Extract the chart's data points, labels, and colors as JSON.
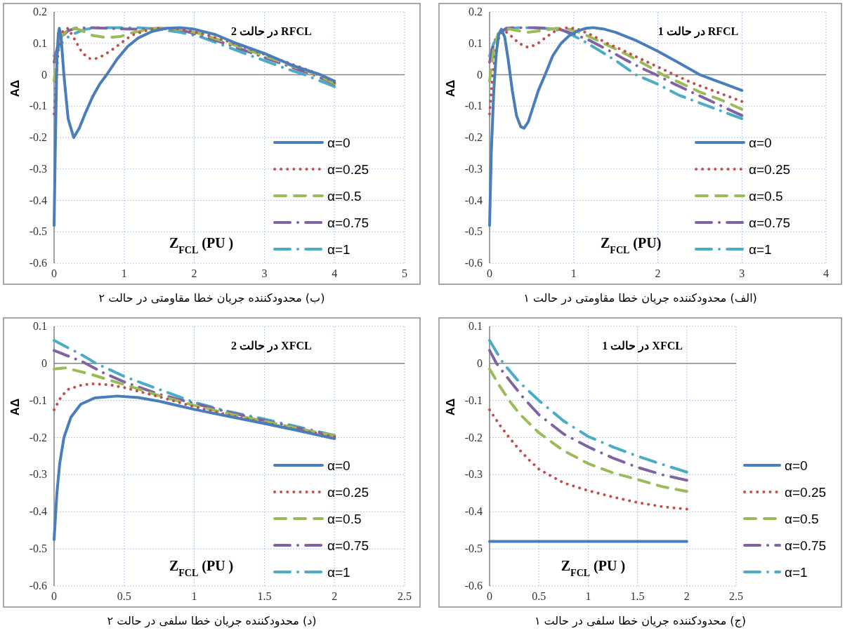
{
  "chart_data": [
    {
      "type": "line",
      "title": "RFCL در حالت 1",
      "xlabel": "Z$_{FCL}$ (PU)",
      "ylabel": "AΔ",
      "annotations": [
        "(الف) محدودکننده جریان خطا مقاومتی در حالت ۱"
      ],
      "xlim": [
        0,
        4
      ],
      "ylim": [
        -0.6,
        0.2
      ],
      "xticks": [
        0,
        1,
        2,
        3,
        4
      ],
      "yticks": [
        -0.6,
        -0.5,
        -0.4,
        -0.3,
        -0.2,
        -0.1,
        0,
        0.1,
        0.2
      ],
      "grid": true,
      "legend": "bottom right",
      "series": [
        {
          "name": "α=0",
          "color": "#4a7ebb",
          "line_style": "solid",
          "x": [
            0,
            0.02,
            0.05,
            0.08,
            0.11,
            0.14,
            0.18,
            0.22,
            0.27,
            0.32,
            0.37,
            0.41,
            0.46,
            0.52,
            0.58,
            0.66,
            0.75,
            0.85,
            0.95,
            1.05,
            1.15,
            1.23,
            1.35,
            1.5,
            1.75,
            2,
            2.25,
            2.5,
            2.75,
            3
          ],
          "values": [
            -0.48,
            -0.25,
            -0.05,
            0.07,
            0.13,
            0.145,
            0.12,
            0.05,
            -0.05,
            -0.13,
            -0.165,
            -0.17,
            -0.15,
            -0.1,
            -0.05,
            0.0,
            0.06,
            0.1,
            0.125,
            0.14,
            0.148,
            0.15,
            0.146,
            0.135,
            0.108,
            0.075,
            0.038,
            0.0,
            -0.025,
            -0.05
          ]
        },
        {
          "name": "α=0.25",
          "color": "#c0504d",
          "line_style": "dotted",
          "x": [
            0,
            0.03,
            0.07,
            0.12,
            0.18,
            0.25,
            0.35,
            0.45,
            0.55,
            0.65,
            0.75,
            0.85,
            0.95,
            1.05,
            1.2,
            1.4,
            1.6,
            1.8,
            2,
            2.2,
            2.4,
            2.6,
            2.8,
            3
          ],
          "values": [
            -0.125,
            -0.02,
            0.07,
            0.13,
            0.14,
            0.125,
            0.1,
            0.088,
            0.095,
            0.115,
            0.135,
            0.147,
            0.15,
            0.145,
            0.128,
            0.1,
            0.076,
            0.05,
            0.025,
            0.0,
            -0.025,
            -0.045,
            -0.065,
            -0.085
          ]
        },
        {
          "name": "α=0.5",
          "color": "#9bbb59",
          "line_style": "dashed",
          "x": [
            0,
            0.05,
            0.1,
            0.2,
            0.3,
            0.45,
            0.6,
            0.8,
            0.95,
            1.1,
            1.3,
            1.5,
            1.7,
            1.9,
            2.06,
            2.3,
            2.5,
            2.75,
            3
          ],
          "values": [
            -0.02,
            0.08,
            0.13,
            0.148,
            0.142,
            0.135,
            0.14,
            0.148,
            0.145,
            0.132,
            0.107,
            0.082,
            0.055,
            0.025,
            0.0,
            -0.03,
            -0.055,
            -0.08,
            -0.11
          ]
        },
        {
          "name": "α=0.75",
          "color": "#8064a2",
          "line_style": "dashdot",
          "x": [
            0,
            0.05,
            0.1,
            0.2,
            0.3,
            0.5,
            0.7,
            0.85,
            1.0,
            1.2,
            1.4,
            1.6,
            1.8,
            1.98,
            2.2,
            2.4,
            2.6,
            2.8,
            3
          ],
          "values": [
            0.04,
            0.1,
            0.13,
            0.148,
            0.15,
            0.15,
            0.148,
            0.143,
            0.13,
            0.108,
            0.08,
            0.05,
            0.022,
            0.0,
            -0.03,
            -0.055,
            -0.08,
            -0.105,
            -0.13
          ]
        },
        {
          "name": "α=1",
          "color": "#4bacc6",
          "line_style": "dashdot",
          "x": [
            0,
            0.05,
            0.1,
            0.15,
            0.25,
            0.35,
            0.5,
            0.7,
            0.9,
            1.1,
            1.3,
            1.5,
            1.74,
            2.0,
            2.25,
            2.5,
            2.75,
            3
          ],
          "values": [
            0.06,
            0.1,
            0.125,
            0.14,
            0.147,
            0.15,
            0.15,
            0.147,
            0.138,
            0.11,
            0.078,
            0.045,
            0.0,
            -0.03,
            -0.065,
            -0.09,
            -0.115,
            -0.14
          ]
        }
      ]
    },
    {
      "type": "line",
      "title": "RFCL در حالت 2",
      "xlabel": "Z$_{FCL}$ (PU )",
      "ylabel": "AΔ",
      "annotations": [
        "(ب) محدودکننده جریان خطا مقاومتی در حالت ۲"
      ],
      "xlim": [
        0,
        5
      ],
      "ylim": [
        -0.6,
        0.2
      ],
      "xticks": [
        0,
        1,
        2,
        3,
        4,
        5
      ],
      "yticks": [
        -0.6,
        -0.5,
        -0.4,
        -0.3,
        -0.2,
        -0.1,
        0,
        0.1,
        0.2
      ],
      "grid": true,
      "legend": "bottom right",
      "series": [
        {
          "name": "α=0",
          "color": "#4a7ebb",
          "line_style": "solid",
          "x": [
            0,
            0.02,
            0.04,
            0.06,
            0.075,
            0.1,
            0.14,
            0.2,
            0.28,
            0.36,
            0.45,
            0.55,
            0.65,
            0.75,
            0.9,
            1.05,
            1.2,
            1.4,
            1.6,
            1.8,
            2.0,
            2.3,
            2.6,
            3.0,
            3.4,
            3.8,
            4.0
          ],
          "values": [
            -0.48,
            -0.2,
            0.05,
            0.13,
            0.148,
            0.12,
            0.0,
            -0.14,
            -0.2,
            -0.17,
            -0.12,
            -0.07,
            -0.03,
            0.0,
            0.05,
            0.09,
            0.117,
            0.138,
            0.148,
            0.15,
            0.145,
            0.128,
            0.1,
            0.068,
            0.03,
            0.0,
            -0.02
          ]
        },
        {
          "name": "α=0.25",
          "color": "#c0504d",
          "line_style": "dotted",
          "x": [
            0,
            0.03,
            0.06,
            0.1,
            0.15,
            0.2,
            0.3,
            0.4,
            0.5,
            0.57,
            0.65,
            0.8,
            0.95,
            1.1,
            1.3,
            1.5,
            1.8,
            2.1,
            2.5,
            3.0,
            3.5,
            3.8,
            4.0
          ],
          "values": [
            -0.125,
            -0.02,
            0.08,
            0.13,
            0.145,
            0.148,
            0.11,
            0.07,
            0.052,
            0.05,
            0.055,
            0.075,
            0.1,
            0.125,
            0.14,
            0.148,
            0.145,
            0.132,
            0.105,
            0.065,
            0.025,
            0.0,
            -0.025
          ]
        },
        {
          "name": "α=0.5",
          "color": "#9bbb59",
          "line_style": "dashed",
          "x": [
            0,
            0.05,
            0.1,
            0.2,
            0.3,
            0.4,
            0.55,
            0.75,
            0.95,
            1.1,
            1.25,
            1.5,
            1.8,
            2.1,
            2.5,
            3.0,
            3.5,
            3.75,
            4.0
          ],
          "values": [
            -0.02,
            0.08,
            0.12,
            0.145,
            0.148,
            0.14,
            0.125,
            0.118,
            0.122,
            0.133,
            0.14,
            0.148,
            0.145,
            0.13,
            0.1,
            0.06,
            0.02,
            0.0,
            -0.028
          ]
        },
        {
          "name": "α=0.75",
          "color": "#8064a2",
          "line_style": "dashdot",
          "x": [
            0,
            0.05,
            0.1,
            0.2,
            0.3,
            0.5,
            0.75,
            1.0,
            1.25,
            1.5,
            1.8,
            2.1,
            2.5,
            3.0,
            3.5,
            3.7,
            4.0
          ],
          "values": [
            0.04,
            0.09,
            0.12,
            0.14,
            0.148,
            0.15,
            0.148,
            0.146,
            0.145,
            0.148,
            0.143,
            0.125,
            0.095,
            0.055,
            0.015,
            0.0,
            -0.03
          ]
        },
        {
          "name": "α=1",
          "color": "#4bacc6",
          "line_style": "dashdot",
          "x": [
            0,
            0.05,
            0.1,
            0.2,
            0.3,
            0.45,
            0.6,
            0.9,
            1.2,
            1.5,
            1.8,
            2.1,
            2.4,
            2.75,
            3.0,
            3.3,
            3.6,
            4.0
          ],
          "values": [
            0.06,
            0.08,
            0.1,
            0.12,
            0.132,
            0.145,
            0.15,
            0.15,
            0.15,
            0.145,
            0.135,
            0.12,
            0.095,
            0.065,
            0.045,
            0.02,
            -0.002,
            -0.038
          ]
        }
      ]
    },
    {
      "type": "line",
      "title": "XFCL در حالت 1",
      "xlabel": "Z$_{FCL}$ (PU )",
      "ylabel": "AΔ",
      "annotations": [
        "(ج) محدودکننده جریان خطا سلفی در حالت ۱"
      ],
      "xlim": [
        0,
        2.5
      ],
      "ylim": [
        -0.6,
        0.1
      ],
      "xticks": [
        0,
        0.5,
        1,
        1.5,
        2,
        2.5
      ],
      "yticks": [
        -0.6,
        -0.5,
        -0.4,
        -0.3,
        -0.2,
        -0.1,
        0,
        0.1
      ],
      "grid": true,
      "legend": "right",
      "series": [
        {
          "name": "α=0",
          "color": "#4a7ebb",
          "line_style": "solid",
          "x": [
            0,
            2
          ],
          "values": [
            -0.48,
            -0.48
          ]
        },
        {
          "name": "α=0.25",
          "color": "#c0504d",
          "line_style": "dotted",
          "x": [
            0,
            0.1,
            0.2,
            0.3,
            0.4,
            0.5,
            0.6,
            0.75,
            1,
            1.25,
            1.5,
            1.75,
            2
          ],
          "values": [
            -0.125,
            -0.165,
            -0.2,
            -0.232,
            -0.26,
            -0.285,
            -0.3,
            -0.322,
            -0.343,
            -0.36,
            -0.375,
            -0.386,
            -0.393
          ]
        },
        {
          "name": "α=0.5",
          "color": "#9bbb59",
          "line_style": "dashed",
          "x": [
            0,
            0.1,
            0.2,
            0.3,
            0.5,
            0.75,
            1,
            1.25,
            1.5,
            1.75,
            2
          ],
          "values": [
            -0.015,
            -0.06,
            -0.1,
            -0.135,
            -0.187,
            -0.235,
            -0.27,
            -0.295,
            -0.313,
            -0.332,
            -0.345
          ]
        },
        {
          "name": "α=0.75",
          "color": "#8064a2",
          "line_style": "dashdot",
          "x": [
            0,
            0.07,
            0.2,
            0.35,
            0.5,
            0.75,
            1,
            1.25,
            1.5,
            1.75,
            2
          ],
          "values": [
            0.035,
            0.0,
            -0.045,
            -0.095,
            -0.138,
            -0.19,
            -0.225,
            -0.255,
            -0.28,
            -0.3,
            -0.315
          ]
        },
        {
          "name": "α=1",
          "color": "#4bacc6",
          "line_style": "dashdot",
          "x": [
            0,
            0.14,
            0.3,
            0.5,
            0.75,
            1,
            1.25,
            1.5,
            1.75,
            2
          ],
          "values": [
            0.062,
            0.0,
            -0.05,
            -0.1,
            -0.155,
            -0.197,
            -0.225,
            -0.25,
            -0.272,
            -0.293
          ]
        }
      ]
    },
    {
      "type": "line",
      "title": "XFCL در حالت 2",
      "xlabel": "Z$_{FCL}$ (PU )",
      "ylabel": "AΔ",
      "annotations": [
        "(د) محدودکننده جریان خطا سلفی در حالت ۲"
      ],
      "xlim": [
        0,
        2.5
      ],
      "ylim": [
        -0.6,
        0.1
      ],
      "xticks": [
        0,
        0.5,
        1,
        1.5,
        2,
        2.5
      ],
      "yticks": [
        -0.6,
        -0.5,
        -0.4,
        -0.3,
        -0.2,
        -0.1,
        0,
        0.1
      ],
      "grid": true,
      "legend": "bottom right",
      "series": [
        {
          "name": "α=0",
          "color": "#4a7ebb",
          "line_style": "solid",
          "x": [
            0,
            0.02,
            0.04,
            0.07,
            0.12,
            0.19,
            0.29,
            0.45,
            0.6,
            0.75,
            1,
            1.25,
            1.5,
            1.75,
            2
          ],
          "values": [
            -0.475,
            -0.35,
            -0.27,
            -0.2,
            -0.145,
            -0.11,
            -0.093,
            -0.088,
            -0.092,
            -0.102,
            -0.124,
            -0.143,
            -0.162,
            -0.182,
            -0.203
          ]
        },
        {
          "name": "α=0.25",
          "color": "#c0504d",
          "line_style": "dotted",
          "x": [
            0,
            0.05,
            0.1,
            0.2,
            0.28,
            0.4,
            0.5,
            0.75,
            1,
            1.25,
            1.5,
            1.75,
            2
          ],
          "values": [
            -0.125,
            -0.09,
            -0.07,
            -0.058,
            -0.055,
            -0.058,
            -0.065,
            -0.09,
            -0.117,
            -0.14,
            -0.16,
            -0.18,
            -0.198
          ]
        },
        {
          "name": "α=0.5",
          "color": "#9bbb59",
          "line_style": "dashed",
          "x": [
            0,
            0.08,
            0.25,
            0.5,
            0.75,
            1,
            1.25,
            1.5,
            1.75,
            2
          ],
          "values": [
            -0.015,
            -0.012,
            -0.028,
            -0.057,
            -0.087,
            -0.113,
            -0.136,
            -0.156,
            -0.176,
            -0.195
          ]
        },
        {
          "name": "α=0.75",
          "color": "#8064a2",
          "line_style": "dashdot",
          "x": [
            0,
            0.1,
            0.2,
            0.35,
            0.5,
            0.75,
            1,
            1.25,
            1.5,
            1.75,
            2
          ],
          "values": [
            0.035,
            0.02,
            0.005,
            -0.025,
            -0.05,
            -0.083,
            -0.108,
            -0.132,
            -0.154,
            -0.175,
            -0.195
          ]
        },
        {
          "name": "α=1",
          "color": "#4bacc6",
          "line_style": "dashdot",
          "x": [
            0,
            0.1,
            0.18,
            0.3,
            0.5,
            0.64,
            0.75,
            1,
            1.25,
            1.5,
            1.75,
            2
          ],
          "values": [
            0.062,
            0.042,
            0.027,
            0.0,
            -0.035,
            -0.055,
            -0.07,
            -0.105,
            -0.13,
            -0.15,
            -0.172,
            -0.194
          ]
        }
      ]
    }
  ]
}
